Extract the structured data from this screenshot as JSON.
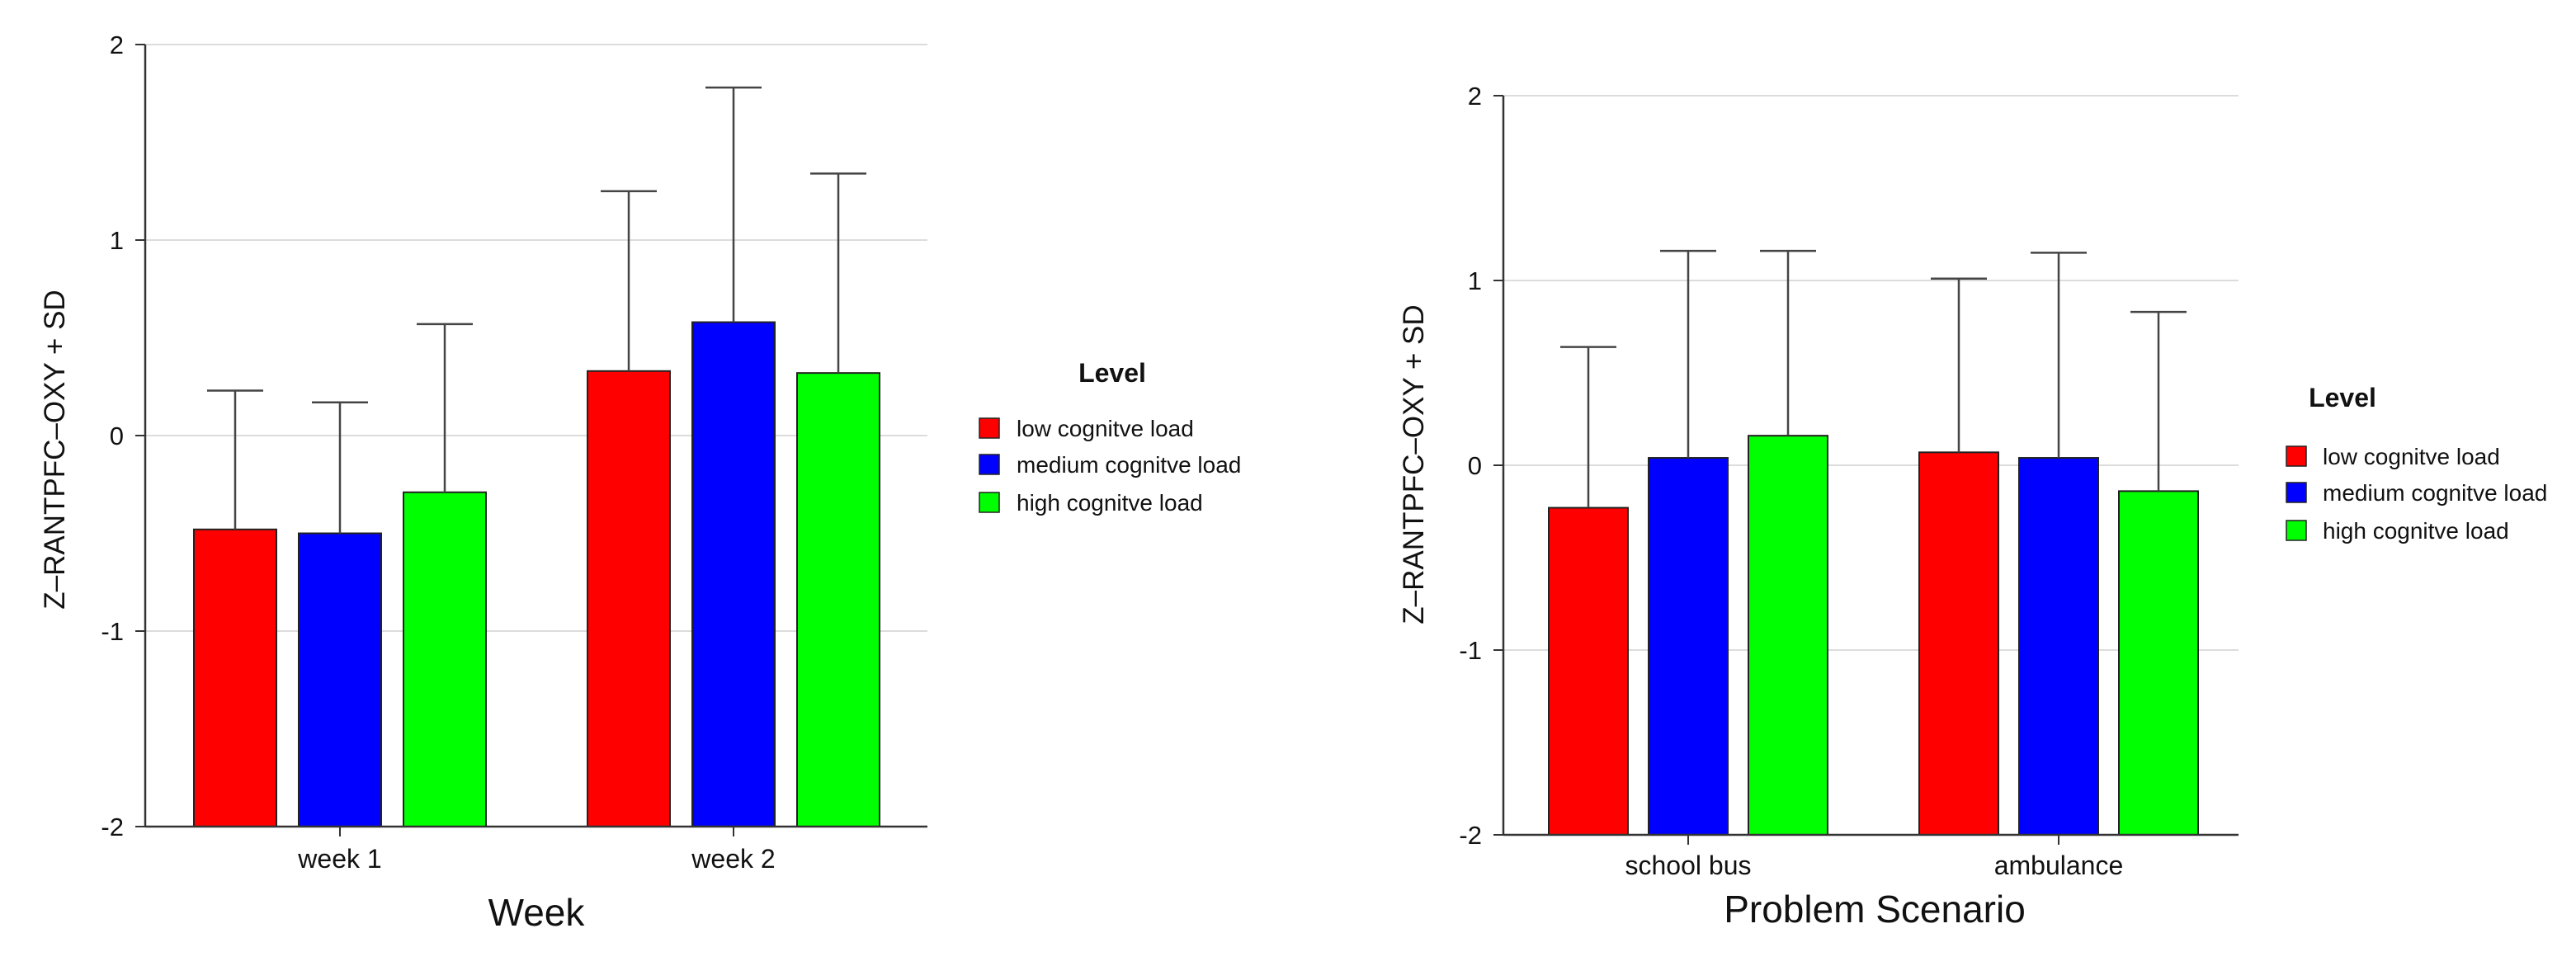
{
  "chart_data": [
    {
      "type": "bar",
      "title": "",
      "xlabel": "Week",
      "ylabel": "Z–RANTPFC–OXY + SD",
      "ylim": [
        -2,
        2
      ],
      "yticks": [
        "2",
        "1",
        "0",
        "-1",
        "-2"
      ],
      "grid": true,
      "categories": [
        "week 1",
        "week 2"
      ],
      "legend_title": "Level",
      "legend_position": "right",
      "series": [
        {
          "name": "low cognitve load",
          "color": "#ff0000",
          "values": [
            -0.48,
            0.33
          ],
          "sd": [
            0.71,
            0.92
          ]
        },
        {
          "name": "medium cognitve load",
          "color": "#0000ff",
          "values": [
            -0.5,
            0.58
          ],
          "sd": [
            0.67,
            1.2
          ]
        },
        {
          "name": "high cognitve load",
          "color": "#00ff00",
          "values": [
            -0.29,
            0.32
          ],
          "sd": [
            0.86,
            1.02
          ]
        }
      ]
    },
    {
      "type": "bar",
      "title": "",
      "xlabel": "Problem Scenario",
      "ylabel": "Z–RANTPFC–OXY + SD",
      "ylim": [
        -2,
        2
      ],
      "yticks": [
        "2",
        "1",
        "0",
        "-1",
        "-2"
      ],
      "grid": true,
      "categories": [
        "school bus",
        "ambulance"
      ],
      "legend_title": "Level",
      "legend_position": "right",
      "series": [
        {
          "name": "low cognitve load",
          "color": "#ff0000",
          "values": [
            -0.23,
            0.07
          ],
          "sd": [
            0.87,
            0.94
          ]
        },
        {
          "name": "medium cognitve load",
          "color": "#0000ff",
          "values": [
            0.04,
            0.04
          ],
          "sd": [
            1.12,
            1.11
          ]
        },
        {
          "name": "high cognitve load",
          "color": "#00ff00",
          "values": [
            0.16,
            -0.14
          ],
          "sd": [
            1.0,
            0.97
          ]
        }
      ]
    }
  ]
}
